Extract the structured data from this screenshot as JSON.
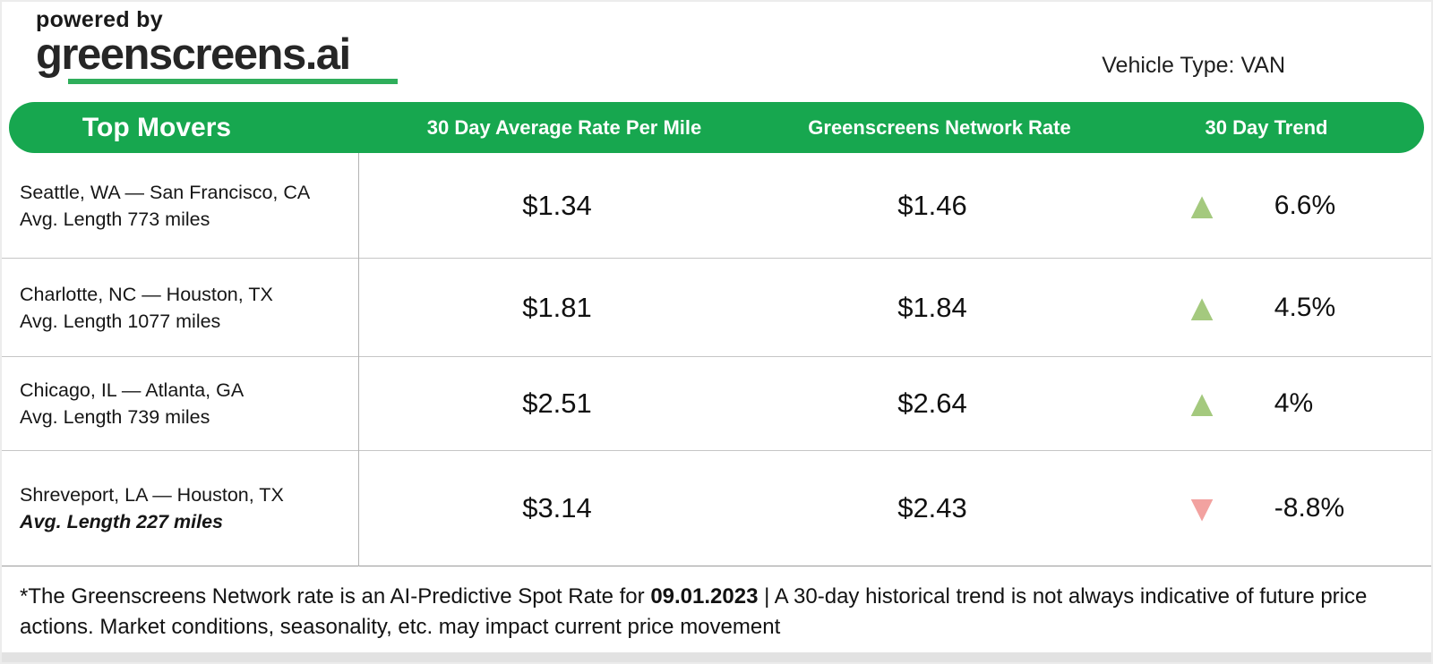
{
  "page": {
    "powered_by": "powered by",
    "brand": "greenscreens.ai",
    "vehicle_type": "Vehicle Type: VAN"
  },
  "table": {
    "header": {
      "col1": "Top Movers",
      "col2": "30 Day Average Rate Per Mile",
      "col3": "Greenscreens Network Rate",
      "col4": "30 Day Trend"
    },
    "rows": [
      {
        "lane": "Seattle, WA — San Francisco, CA",
        "avg_length": "Avg. Length 773 miles",
        "avg_length_italic": false,
        "avg_rate_per_mile": "$1.34",
        "network_rate": "$1.46",
        "trend": {
          "direction": "up",
          "icon": "▲",
          "pct": "6.6%"
        }
      },
      {
        "lane": "Charlotte, NC — Houston, TX",
        "avg_length": "Avg. Length 1077 miles",
        "avg_length_italic": false,
        "avg_rate_per_mile": "$1.81",
        "network_rate": "$1.84",
        "trend": {
          "direction": "up",
          "icon": "▲",
          "pct": "4.5%"
        }
      },
      {
        "lane": "Chicago, IL — Atlanta, GA",
        "avg_length": "Avg. Length 739 miles",
        "avg_length_italic": false,
        "avg_rate_per_mile": "$2.51",
        "network_rate": "$2.64",
        "trend": {
          "direction": "up",
          "icon": "▲",
          "pct": "4%"
        }
      },
      {
        "lane": "Shreveport, LA — Houston, TX",
        "avg_length": "Avg. Length 227 miles",
        "avg_length_italic": true,
        "avg_rate_per_mile": "$3.14",
        "network_rate": "$2.43",
        "trend": {
          "direction": "down",
          "icon": "▼",
          "pct": "-8.8%"
        }
      }
    ]
  },
  "footnote": {
    "part1": "*The Greenscreens Network rate is an AI-Predictive Spot Rate for ",
    "date": "09.01.2023",
    "part2": " | A 30-day historical trend is not always indicative of future price actions. Market conditions, seasonality, etc. may impact current price movement"
  },
  "colors": {
    "brand_green": "#17A74F",
    "underline_green": "#2FAE5B",
    "trend_up": "#A4C97E",
    "trend_down": "#F2A2A0"
  }
}
